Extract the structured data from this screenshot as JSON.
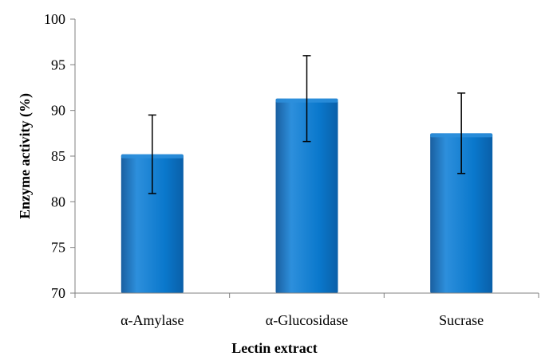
{
  "chart_data": {
    "type": "bar",
    "categories": [
      "α-Amylase",
      "α-Glucosidase",
      "Sucrase"
    ],
    "values": [
      85.2,
      91.3,
      87.5
    ],
    "error": [
      4.3,
      4.7,
      4.4
    ],
    "title": "",
    "xlabel": "Lectin extract",
    "ylabel": "Enzyme activity (%)",
    "ylim": [
      70,
      100
    ],
    "yticks": [
      70,
      75,
      80,
      85,
      90,
      95,
      100
    ],
    "grid": false,
    "legend": "none",
    "colors": {
      "bar": "#0070c0",
      "bar_light": "#2d8fdc",
      "bar_dark": "#004e8a",
      "error_bar": "#000000",
      "axis": "#808080"
    }
  }
}
